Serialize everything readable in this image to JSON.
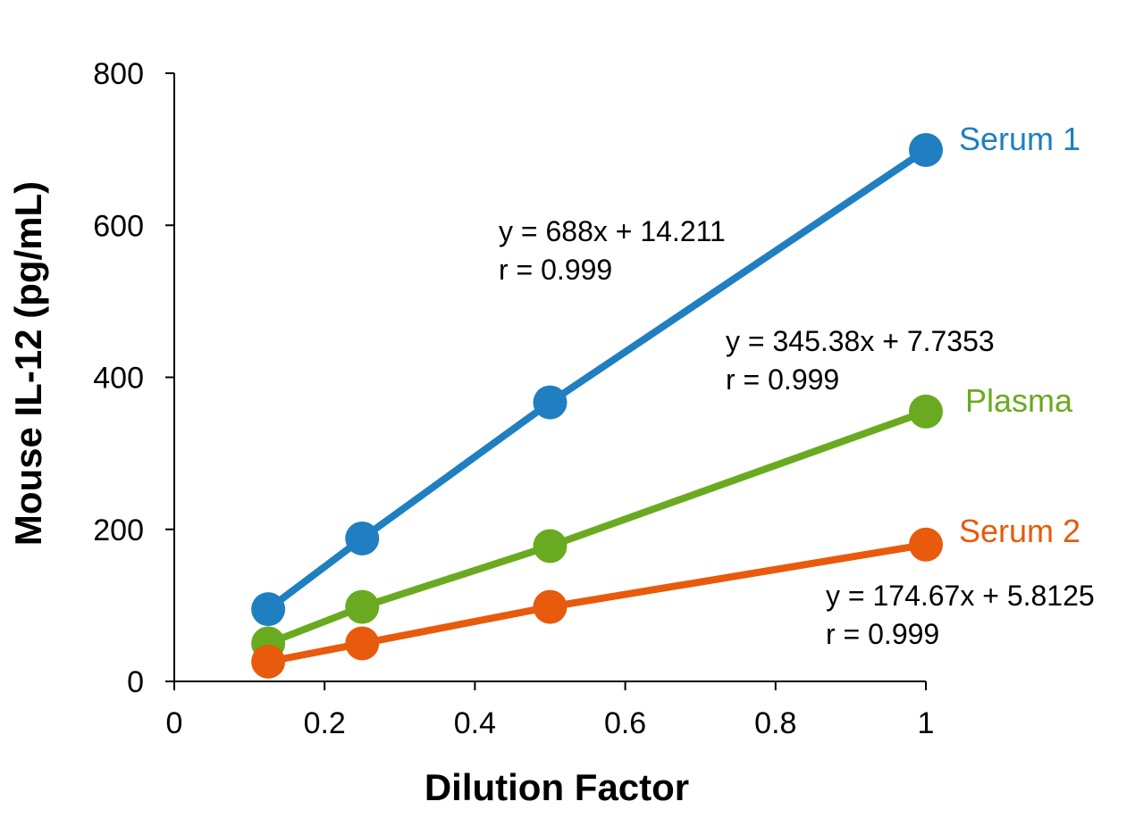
{
  "chart_data": {
    "type": "line",
    "title": "",
    "xlabel": "Dilution Factor",
    "ylabel": "Mouse IL-12 (pg/mL)",
    "xlim": [
      0,
      1
    ],
    "ylim": [
      0,
      800
    ],
    "x_ticks": [
      0,
      0.2,
      0.4,
      0.6,
      0.8,
      1
    ],
    "y_ticks": [
      0,
      200,
      400,
      600,
      800
    ],
    "x_tick_labels": [
      "0",
      "0.2",
      "0.4",
      "0.6",
      "0.8",
      "1"
    ],
    "y_tick_labels": [
      "0",
      "200",
      "400",
      "600",
      "800"
    ],
    "grid": false,
    "legend": "none (series labelled directly at line ends)",
    "series": [
      {
        "name": "Serum 1",
        "color": "#1f7fc0",
        "x": [
          0.125,
          0.25,
          0.5,
          1
        ],
        "y": [
          95,
          188,
          367,
          699
        ],
        "equation": "y = 688x + 14.211",
        "r": "r = 0.999"
      },
      {
        "name": "Plasma",
        "color": "#6aaa20",
        "x": [
          0.125,
          0.25,
          0.5,
          1
        ],
        "y": [
          50,
          98,
          178,
          355
        ],
        "equation": "y = 345.38x + 7.7353",
        "r": "r = 0.999"
      },
      {
        "name": "Serum 2",
        "color": "#e85a0c",
        "x": [
          0.125,
          0.25,
          0.5,
          1
        ],
        "y": [
          26,
          50,
          98,
          180
        ],
        "equation": "y = 174.67x + 5.8125",
        "r": "r = 0.999"
      }
    ]
  }
}
